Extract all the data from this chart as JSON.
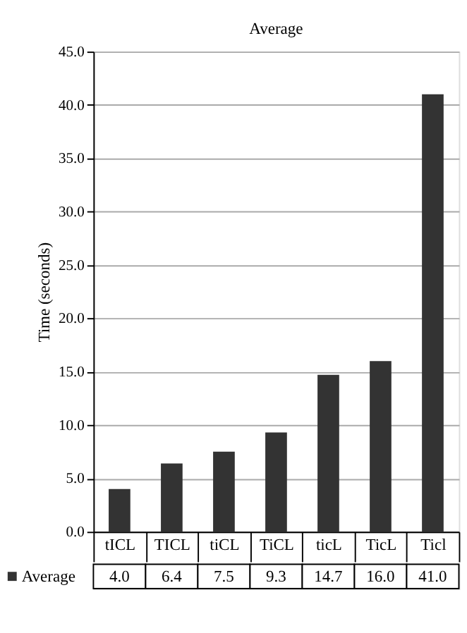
{
  "chart_data": {
    "type": "bar",
    "title": "Average",
    "ylabel": "Time (seconds)",
    "categories": [
      "tICL",
      "TICL",
      "tiCL",
      "TiCL",
      "ticL",
      "TicL",
      "Ticl"
    ],
    "series": [
      {
        "name": "Average",
        "color": "#333333",
        "values": [
          4.0,
          6.4,
          7.5,
          9.3,
          14.7,
          16.0,
          41.0
        ],
        "value_labels": [
          "4.0",
          "6.4",
          "7.5",
          "9.3",
          "14.7",
          "16.0",
          "41.0"
        ]
      }
    ],
    "ylim": [
      0,
      45
    ],
    "yticks": [
      {
        "value": 0,
        "label": "0.0"
      },
      {
        "value": 5,
        "label": "5.0"
      },
      {
        "value": 10,
        "label": "10.0"
      },
      {
        "value": 15,
        "label": "15.0"
      },
      {
        "value": 20,
        "label": "20.0"
      },
      {
        "value": 25,
        "label": "25.0"
      },
      {
        "value": 30,
        "label": "30.0"
      },
      {
        "value": 35,
        "label": "35.0"
      },
      {
        "value": 40,
        "label": "40.0"
      },
      {
        "value": 45,
        "label": "45.0"
      }
    ],
    "grid": "y",
    "legend": "bottom left"
  }
}
